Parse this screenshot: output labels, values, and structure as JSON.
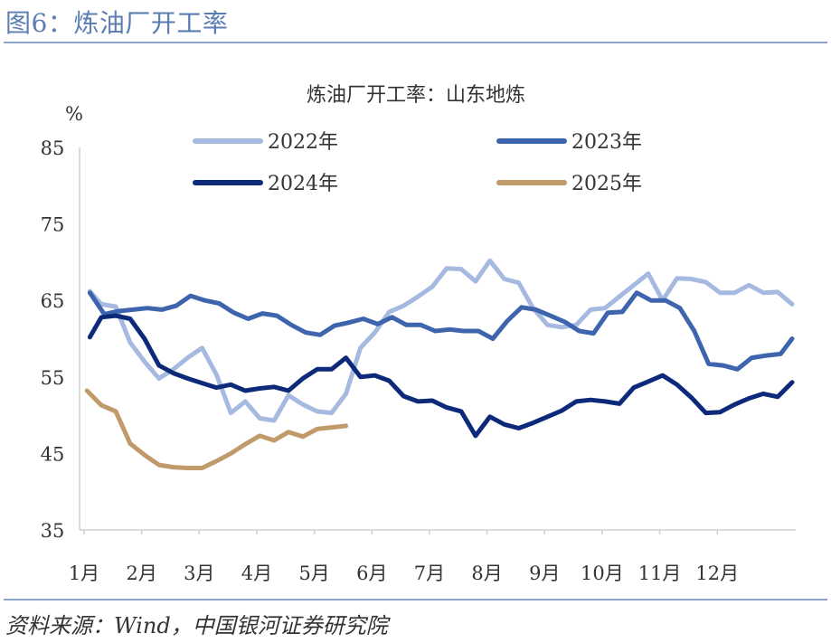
{
  "figure_title": "图6：炼油厂开工率",
  "source": "资料来源：Wind，中国银河证券研究院",
  "chart_data": {
    "type": "line",
    "title": "炼油厂开工率：山东地炼",
    "ylabel": "%",
    "ylim": [
      35,
      85
    ],
    "yticks": [
      35,
      45,
      55,
      65,
      75,
      85
    ],
    "xlim": [
      1,
      13.3
    ],
    "categories": [
      "1月",
      "2月",
      "3月",
      "4月",
      "5月",
      "6月",
      "7月",
      "8月",
      "9月",
      "10月",
      "11月",
      "12月"
    ],
    "series": [
      {
        "name": "2022年",
        "color": "#a6b9e0",
        "x": [
          1.1,
          1.3,
          1.55,
          1.8,
          2.05,
          2.3,
          2.55,
          2.8,
          3.05,
          3.3,
          3.55,
          3.8,
          4.05,
          4.3,
          4.55,
          4.8,
          5.05,
          5.3,
          5.55,
          5.8,
          6.05,
          6.3,
          6.55,
          6.8,
          7.05,
          7.3,
          7.55,
          7.8,
          8.05,
          8.3,
          8.55,
          8.8,
          9.05,
          9.3,
          9.55,
          9.8,
          10.05,
          10.3,
          10.55,
          10.8,
          11.05,
          11.3,
          11.55,
          11.8,
          12.05,
          12.3,
          12.55,
          12.8,
          13.05,
          13.3
        ],
        "y": [
          66.2,
          64.5,
          64.2,
          59.5,
          57.0,
          54.8,
          56.0,
          57.5,
          58.8,
          55.3,
          50.3,
          51.8,
          49.6,
          49.3,
          52.6,
          51.4,
          50.5,
          50.3,
          52.8,
          58.8,
          60.8,
          63.5,
          64.3,
          65.5,
          66.8,
          69.2,
          69.1,
          67.5,
          70.2,
          67.8,
          67.3,
          64.0,
          61.8,
          61.5,
          61.8,
          63.8,
          64.0,
          65.5,
          67.0,
          68.5,
          65.0,
          67.9,
          67.8,
          67.4,
          66.0,
          66.0,
          67.0,
          66.0,
          66.1,
          64.5
        ]
      },
      {
        "name": "2023年",
        "color": "#3d64ac",
        "x": [
          1.1,
          1.35,
          1.6,
          1.85,
          2.1,
          2.35,
          2.6,
          2.85,
          3.1,
          3.35,
          3.6,
          3.85,
          4.1,
          4.35,
          4.6,
          4.85,
          5.1,
          5.35,
          5.6,
          5.85,
          6.1,
          6.35,
          6.6,
          6.85,
          7.1,
          7.35,
          7.6,
          7.85,
          8.1,
          8.35,
          8.6,
          8.85,
          9.1,
          9.35,
          9.6,
          9.85,
          10.1,
          10.35,
          10.6,
          10.85,
          11.1,
          11.35,
          11.6,
          11.85,
          12.1,
          12.35,
          12.6,
          12.85,
          13.1,
          13.3
        ],
        "y": [
          66.0,
          63.2,
          63.6,
          63.8,
          64.0,
          63.8,
          64.3,
          65.6,
          65.0,
          64.6,
          63.4,
          62.6,
          63.3,
          63.0,
          61.8,
          60.8,
          60.5,
          61.7,
          62.1,
          62.6,
          61.9,
          62.8,
          61.8,
          61.8,
          61.0,
          61.2,
          61.0,
          61.0,
          60.0,
          62.3,
          64.1,
          63.8,
          63.0,
          62.2,
          61.0,
          60.7,
          63.4,
          63.5,
          66.0,
          65.0,
          65.0,
          64.0,
          61.0,
          56.7,
          56.5,
          56.0,
          57.5,
          57.8,
          58.0,
          60.0
        ]
      },
      {
        "name": "2024年",
        "color": "#0d2a7a",
        "x": [
          1.1,
          1.3,
          1.55,
          1.8,
          2.05,
          2.3,
          2.55,
          2.8,
          3.05,
          3.3,
          3.55,
          3.8,
          4.05,
          4.3,
          4.55,
          4.8,
          5.05,
          5.3,
          5.55,
          5.8,
          6.05,
          6.3,
          6.55,
          6.8,
          7.05,
          7.3,
          7.55,
          7.8,
          8.05,
          8.3,
          8.55,
          8.8,
          9.05,
          9.3,
          9.55,
          9.8,
          10.05,
          10.3,
          10.55,
          10.8,
          11.05,
          11.3,
          11.55,
          11.8,
          12.05,
          12.3,
          12.55,
          12.8,
          13.05,
          13.3
        ],
        "y": [
          60.2,
          62.8,
          63.0,
          62.6,
          60.0,
          56.5,
          55.5,
          54.8,
          54.2,
          53.6,
          54.0,
          53.2,
          53.5,
          53.7,
          53.2,
          54.8,
          56.0,
          56.0,
          57.5,
          55.0,
          55.2,
          54.5,
          52.5,
          51.8,
          51.9,
          51.0,
          50.5,
          47.3,
          49.8,
          48.8,
          48.3,
          49.0,
          49.8,
          50.6,
          51.8,
          52.0,
          51.8,
          51.5,
          53.6,
          54.4,
          55.2,
          54.0,
          52.3,
          50.3,
          50.4,
          51.4,
          52.2,
          52.8,
          52.4,
          54.3
        ]
      },
      {
        "name": "2025年",
        "color": "#c09a6b",
        "x": [
          1.05,
          1.3,
          1.55,
          1.8,
          2.05,
          2.3,
          2.55,
          2.8,
          3.05,
          3.3,
          3.55,
          3.8,
          4.05,
          4.3,
          4.55,
          4.8,
          5.05,
          5.3,
          5.55
        ],
        "y": [
          53.2,
          51.3,
          50.5,
          46.3,
          44.8,
          43.5,
          43.2,
          43.1,
          43.1,
          44.0,
          45.0,
          46.2,
          47.3,
          46.7,
          47.8,
          47.2,
          48.2,
          48.4,
          48.6
        ]
      }
    ]
  }
}
